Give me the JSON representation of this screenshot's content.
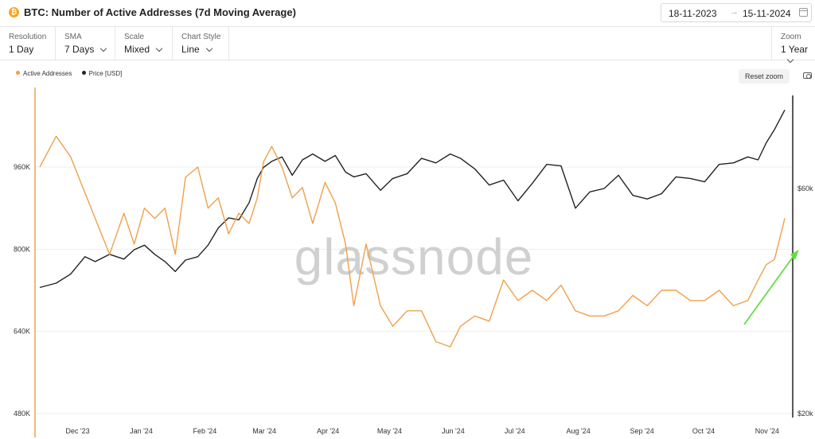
{
  "header": {
    "coin_symbol": "₿",
    "title": "BTC: Number of Active Addresses (7d Moving Average)",
    "date_from": "18-11-2023",
    "date_arrow": "→",
    "date_to": "15-11-2024"
  },
  "controls": {
    "resolution": {
      "label": "Resolution",
      "value": "1 Day"
    },
    "sma": {
      "label": "SMA",
      "value": "7 Days"
    },
    "scale": {
      "label": "Scale",
      "value": "Mixed"
    },
    "chart_style": {
      "label": "Chart Style",
      "value": "Line"
    },
    "zoom": {
      "label": "Zoom",
      "value": "1 Year"
    }
  },
  "reset_zoom_label": "Reset zoom",
  "watermark": "glassnode",
  "colors": {
    "active_addresses": "#f0a04b",
    "price": "#222222",
    "trend_arrow": "#66dd44"
  },
  "chart_data": {
    "type": "line",
    "title": "BTC: Number of Active Addresses (7d Moving Average)",
    "x_tick_labels": [
      "Dec '23",
      "Jan '24",
      "Feb '24",
      "Mar '24",
      "Apr '24",
      "May '24",
      "Jun '24",
      "Jul '24",
      "Aug '24",
      "Sep '24",
      "Oct '24",
      "Nov '24"
    ],
    "left_axis": {
      "tick_labels": [
        "480K",
        "640K",
        "800K",
        "960K"
      ],
      "ticks": [
        480000,
        640000,
        800000,
        960000
      ],
      "range": [
        480000,
        1100000
      ]
    },
    "right_axis": {
      "tick_labels": [
        "$20k",
        "$60k"
      ],
      "ticks": [
        20000,
        60000
      ],
      "scale": "log",
      "range": [
        20000,
        100000
      ]
    },
    "grid": "horizontal",
    "legend": "top-left",
    "series": [
      {
        "name": "Active Addresses",
        "axis": "left",
        "x": [
          "2023-11-18",
          "2023-11-26",
          "2023-12-03",
          "2023-12-10",
          "2023-12-15",
          "2023-12-22",
          "2023-12-29",
          "2024-01-03",
          "2024-01-08",
          "2024-01-13",
          "2024-01-18",
          "2024-01-23",
          "2024-01-28",
          "2024-02-03",
          "2024-02-08",
          "2024-02-13",
          "2024-02-18",
          "2024-02-23",
          "2024-02-28",
          "2024-03-03",
          "2024-03-06",
          "2024-03-10",
          "2024-03-15",
          "2024-03-20",
          "2024-03-25",
          "2024-03-30",
          "2024-04-05",
          "2024-04-10",
          "2024-04-15",
          "2024-04-19",
          "2024-04-25",
          "2024-05-02",
          "2024-05-08",
          "2024-05-15",
          "2024-05-22",
          "2024-05-29",
          "2024-06-05",
          "2024-06-10",
          "2024-06-17",
          "2024-06-24",
          "2024-07-01",
          "2024-07-08",
          "2024-07-15",
          "2024-07-22",
          "2024-07-29",
          "2024-08-05",
          "2024-08-12",
          "2024-08-19",
          "2024-08-26",
          "2024-09-02",
          "2024-09-09",
          "2024-09-16",
          "2024-09-23",
          "2024-09-30",
          "2024-10-07",
          "2024-10-14",
          "2024-10-21",
          "2024-10-28",
          "2024-11-02",
          "2024-11-06",
          "2024-11-10",
          "2024-11-15"
        ],
        "values": [
          960000,
          1020000,
          980000,
          910000,
          860000,
          790000,
          870000,
          810000,
          880000,
          860000,
          880000,
          790000,
          940000,
          960000,
          880000,
          900000,
          830000,
          870000,
          850000,
          900000,
          970000,
          1000000,
          960000,
          900000,
          920000,
          850000,
          930000,
          890000,
          810000,
          690000,
          810000,
          690000,
          650000,
          680000,
          680000,
          620000,
          610000,
          650000,
          670000,
          660000,
          740000,
          700000,
          720000,
          700000,
          730000,
          680000,
          670000,
          670000,
          680000,
          710000,
          690000,
          720000,
          720000,
          700000,
          700000,
          720000,
          690000,
          700000,
          740000,
          770000,
          780000,
          860000
        ]
      },
      {
        "name": "Price [USD]",
        "axis": "right",
        "x": [
          "2023-11-18",
          "2023-11-26",
          "2023-12-03",
          "2023-12-10",
          "2023-12-15",
          "2023-12-22",
          "2023-12-29",
          "2024-01-03",
          "2024-01-08",
          "2024-01-13",
          "2024-01-18",
          "2024-01-23",
          "2024-01-28",
          "2024-02-03",
          "2024-02-08",
          "2024-02-13",
          "2024-02-18",
          "2024-02-23",
          "2024-02-28",
          "2024-03-03",
          "2024-03-06",
          "2024-03-10",
          "2024-03-15",
          "2024-03-20",
          "2024-03-25",
          "2024-03-30",
          "2024-04-05",
          "2024-04-10",
          "2024-04-15",
          "2024-04-19",
          "2024-04-25",
          "2024-05-02",
          "2024-05-08",
          "2024-05-15",
          "2024-05-22",
          "2024-05-29",
          "2024-06-05",
          "2024-06-10",
          "2024-06-17",
          "2024-06-24",
          "2024-07-01",
          "2024-07-08",
          "2024-07-15",
          "2024-07-22",
          "2024-07-29",
          "2024-08-05",
          "2024-08-12",
          "2024-08-19",
          "2024-08-26",
          "2024-09-02",
          "2024-09-09",
          "2024-09-16",
          "2024-09-23",
          "2024-09-30",
          "2024-10-07",
          "2024-10-14",
          "2024-10-21",
          "2024-10-28",
          "2024-11-02",
          "2024-11-06",
          "2024-11-10",
          "2024-11-15"
        ],
        "values": [
          37000,
          37800,
          39500,
          43000,
          42000,
          43500,
          42500,
          44500,
          45500,
          43500,
          42000,
          40000,
          42300,
          43000,
          45500,
          49500,
          52000,
          51500,
          56000,
          63000,
          66500,
          68500,
          70000,
          64000,
          69000,
          71000,
          68500,
          70500,
          65000,
          63500,
          64500,
          59500,
          63000,
          64500,
          69500,
          68000,
          71000,
          69500,
          66000,
          61000,
          62500,
          56500,
          61500,
          67500,
          67000,
          54500,
          59000,
          60000,
          64000,
          58000,
          57000,
          58500,
          63500,
          63000,
          62000,
          67500,
          68000,
          70000,
          69000,
          75000,
          80000,
          88000
        ]
      }
    ]
  }
}
